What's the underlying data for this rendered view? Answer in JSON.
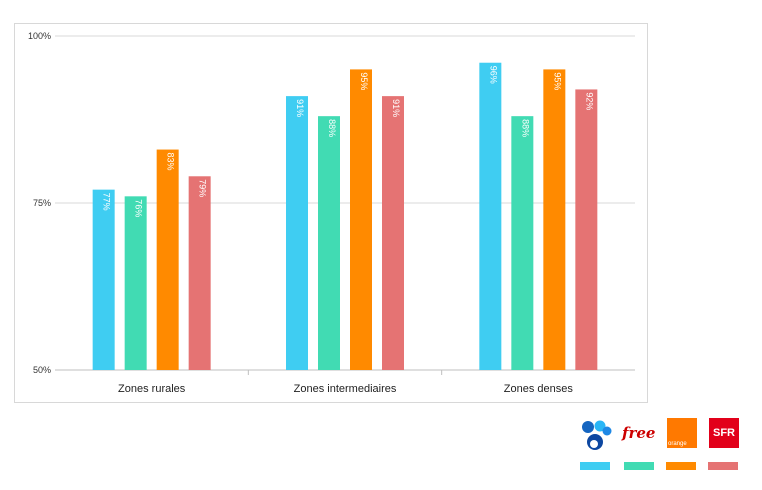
{
  "chart_data": {
    "type": "bar",
    "categories": [
      "Zones rurales",
      "Zones intermediaires",
      "Zones denses"
    ],
    "series": [
      {
        "name": "Bouygues Telecom",
        "color": "#3fcdf2",
        "values": [
          77,
          91,
          96
        ],
        "labels": [
          "77%",
          "91%",
          "96%"
        ]
      },
      {
        "name": "Free",
        "color": "#41dbb3",
        "values": [
          76,
          88,
          88
        ],
        "labels": [
          "76%",
          "88%",
          "88%"
        ]
      },
      {
        "name": "Orange",
        "color": "#ff8a00",
        "values": [
          83,
          95,
          95
        ],
        "labels": [
          "83%",
          "95%",
          "95%"
        ]
      },
      {
        "name": "SFR",
        "color": "#e57373",
        "values": [
          79,
          91,
          92
        ],
        "labels": [
          "79%",
          "91%",
          "92%"
        ]
      }
    ],
    "ylim": [
      50,
      100
    ],
    "yticks": [
      50,
      75,
      100
    ],
    "ytick_labels": [
      "50%",
      "75%",
      "100%"
    ],
    "grid": true,
    "legend": "bottom-right"
  },
  "legend": {
    "items": [
      {
        "name": "bouygues",
        "icon": "bouygues-logo-icon",
        "color": "#3fcdf2"
      },
      {
        "name": "free",
        "text": "free",
        "color": "#41dbb3"
      },
      {
        "name": "orange",
        "text": "orange",
        "color": "#ff8a00"
      },
      {
        "name": "sfr",
        "text": "SFR",
        "color": "#e57373"
      }
    ]
  }
}
